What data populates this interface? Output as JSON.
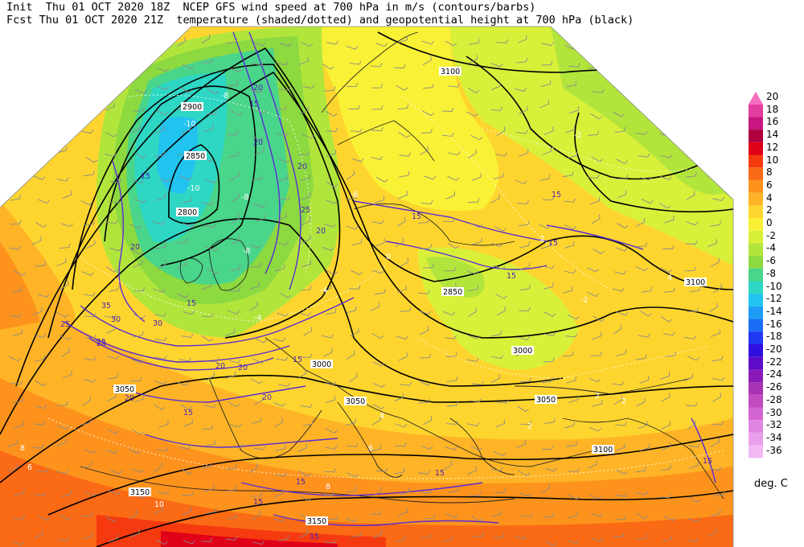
{
  "header": {
    "init_label": "Init",
    "init_time": "Thu 01 OCT 2020 18Z",
    "fcst_label": "Fcst",
    "fcst_time": "Thu 01 OCT 2020 21Z",
    "title_line1": "NCEP GFS wind speed at 700 hPa in m/s (contours/barbs)",
    "title_line2": "temperature (shaded/dotted) and geopotential height at 700 hPa (black)"
  },
  "legend": {
    "units": "deg. C",
    "levels": [
      {
        "label": "20",
        "color": "#f76ec0"
      },
      {
        "label": "18",
        "color": "#e23e9f"
      },
      {
        "label": "16",
        "color": "#c7167f"
      },
      {
        "label": "14",
        "color": "#b0003f"
      },
      {
        "label": "12",
        "color": "#e00018"
      },
      {
        "label": "10",
        "color": "#f53a10"
      },
      {
        "label": "8",
        "color": "#fb6a14"
      },
      {
        "label": "6",
        "color": "#fd931c"
      },
      {
        "label": "4",
        "color": "#feb426"
      },
      {
        "label": "2",
        "color": "#fed52e"
      },
      {
        "label": "0",
        "color": "#f9f135"
      },
      {
        "label": "-2",
        "color": "#d9f03a"
      },
      {
        "label": "-4",
        "color": "#b2e53c"
      },
      {
        "label": "-6",
        "color": "#8cd940"
      },
      {
        "label": "-8",
        "color": "#49d58a"
      },
      {
        "label": "-10",
        "color": "#2dd7c4"
      },
      {
        "label": "-12",
        "color": "#20c4ee"
      },
      {
        "label": "-14",
        "color": "#1d9cf6"
      },
      {
        "label": "-16",
        "color": "#1a6df5"
      },
      {
        "label": "-18",
        "color": "#1f38f2"
      },
      {
        "label": "-20",
        "color": "#2f10e0"
      },
      {
        "label": "-22",
        "color": "#5e0cc8"
      },
      {
        "label": "-24",
        "color": "#8a1ab8"
      },
      {
        "label": "-26",
        "color": "#a834b3"
      },
      {
        "label": "-28",
        "color": "#c24bbf"
      },
      {
        "label": "-30",
        "color": "#d466d2"
      },
      {
        "label": "-32",
        "color": "#e085e2"
      },
      {
        "label": "-34",
        "color": "#ea9fec"
      },
      {
        "label": "-36",
        "color": "#f2b8f4"
      }
    ]
  },
  "height_labels": [
    "3100",
    "2900",
    "2850",
    "2800",
    "2850",
    "3100",
    "3000",
    "3000",
    "3050",
    "3050",
    "3050",
    "3100",
    "3150",
    "3150"
  ],
  "wind_labels": [
    "20",
    "15",
    "20",
    "20",
    "15",
    "25",
    "20",
    "15",
    "15",
    "15",
    "20",
    "15",
    "35",
    "30",
    "25",
    "30",
    "25",
    "20",
    "20",
    "20",
    "15",
    "15",
    "15",
    "15",
    "15",
    "15",
    "20",
    "25",
    "15",
    "15"
  ],
  "temp_labels": [
    "-8",
    "-10",
    "-10",
    "-8",
    "-8",
    "-4",
    "-4",
    "-2",
    "-2",
    "0",
    "2",
    "2",
    "4",
    "4",
    "2",
    "6",
    "6",
    "8",
    "-2",
    "-6",
    "8",
    "10"
  ]
}
